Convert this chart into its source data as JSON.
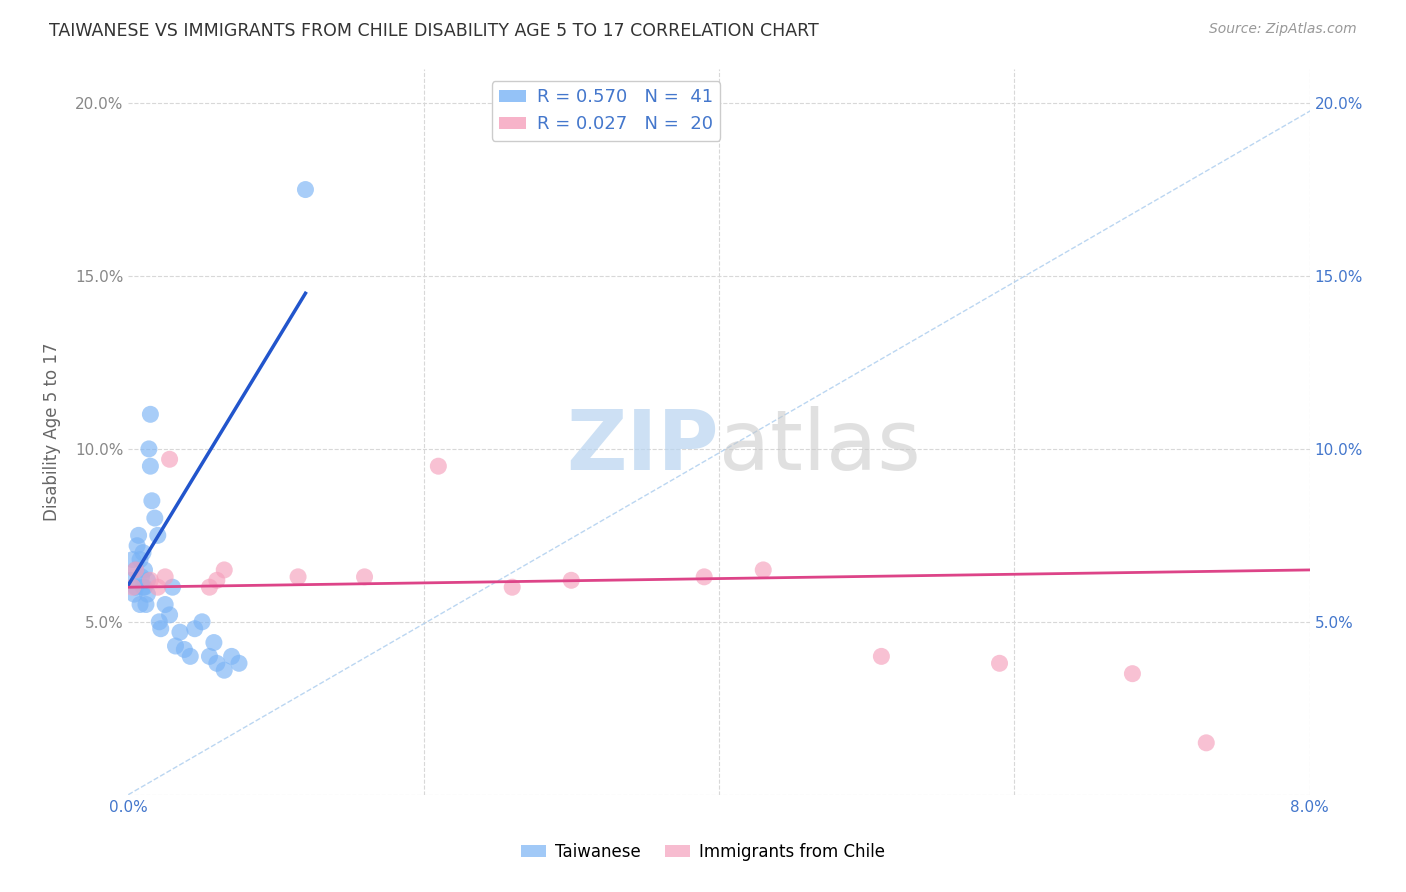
{
  "title": "TAIWANESE VS IMMIGRANTS FROM CHILE DISABILITY AGE 5 TO 17 CORRELATION CHART",
  "source": "Source: ZipAtlas.com",
  "ylabel": "Disability Age 5 to 17",
  "xlim": [
    0.0,
    0.08
  ],
  "ylim": [
    0.0,
    0.21
  ],
  "background_color": "#ffffff",
  "grid_color": "#d8d8d8",
  "taiwanese_color": "#7ab3f5",
  "chile_color": "#f5a0bc",
  "tw_line_color": "#2255cc",
  "ch_line_color": "#dd4488",
  "diag_line_color": "#aaccee",
  "taiwanese_r": 0.57,
  "taiwanese_n": 41,
  "chile_r": 0.027,
  "chile_n": 20,
  "taiwanese_x": [
    0.0002,
    0.0003,
    0.0004,
    0.0005,
    0.0005,
    0.0006,
    0.0007,
    0.0008,
    0.0008,
    0.0009,
    0.001,
    0.001,
    0.0011,
    0.0011,
    0.0012,
    0.0013,
    0.0013,
    0.0014,
    0.0015,
    0.0015,
    0.0016,
    0.0018,
    0.002,
    0.0021,
    0.0022,
    0.0025,
    0.0028,
    0.003,
    0.0032,
    0.0035,
    0.0038,
    0.0042,
    0.0045,
    0.005,
    0.0055,
    0.0058,
    0.006,
    0.0065,
    0.007,
    0.0075,
    0.012
  ],
  "taiwanese_y": [
    0.062,
    0.068,
    0.058,
    0.06,
    0.065,
    0.072,
    0.075,
    0.055,
    0.068,
    0.063,
    0.06,
    0.07,
    0.065,
    0.06,
    0.055,
    0.058,
    0.062,
    0.1,
    0.095,
    0.11,
    0.085,
    0.08,
    0.075,
    0.05,
    0.048,
    0.055,
    0.052,
    0.06,
    0.043,
    0.047,
    0.042,
    0.04,
    0.048,
    0.05,
    0.04,
    0.044,
    0.038,
    0.036,
    0.04,
    0.038,
    0.175
  ],
  "chile_x": [
    0.0003,
    0.0005,
    0.0015,
    0.002,
    0.0025,
    0.0028,
    0.0055,
    0.006,
    0.0065,
    0.0115,
    0.016,
    0.021,
    0.026,
    0.03,
    0.039,
    0.043,
    0.051,
    0.059,
    0.068,
    0.073
  ],
  "chile_y": [
    0.06,
    0.065,
    0.062,
    0.06,
    0.063,
    0.097,
    0.06,
    0.062,
    0.065,
    0.063,
    0.063,
    0.095,
    0.06,
    0.062,
    0.063,
    0.065,
    0.04,
    0.038,
    0.035,
    0.015
  ],
  "legend_entries": [
    {
      "label": "R = 0.570   N =  41",
      "color": "#7ab3f5"
    },
    {
      "label": "R = 0.027   N =  20",
      "color": "#f5a0bc"
    }
  ]
}
